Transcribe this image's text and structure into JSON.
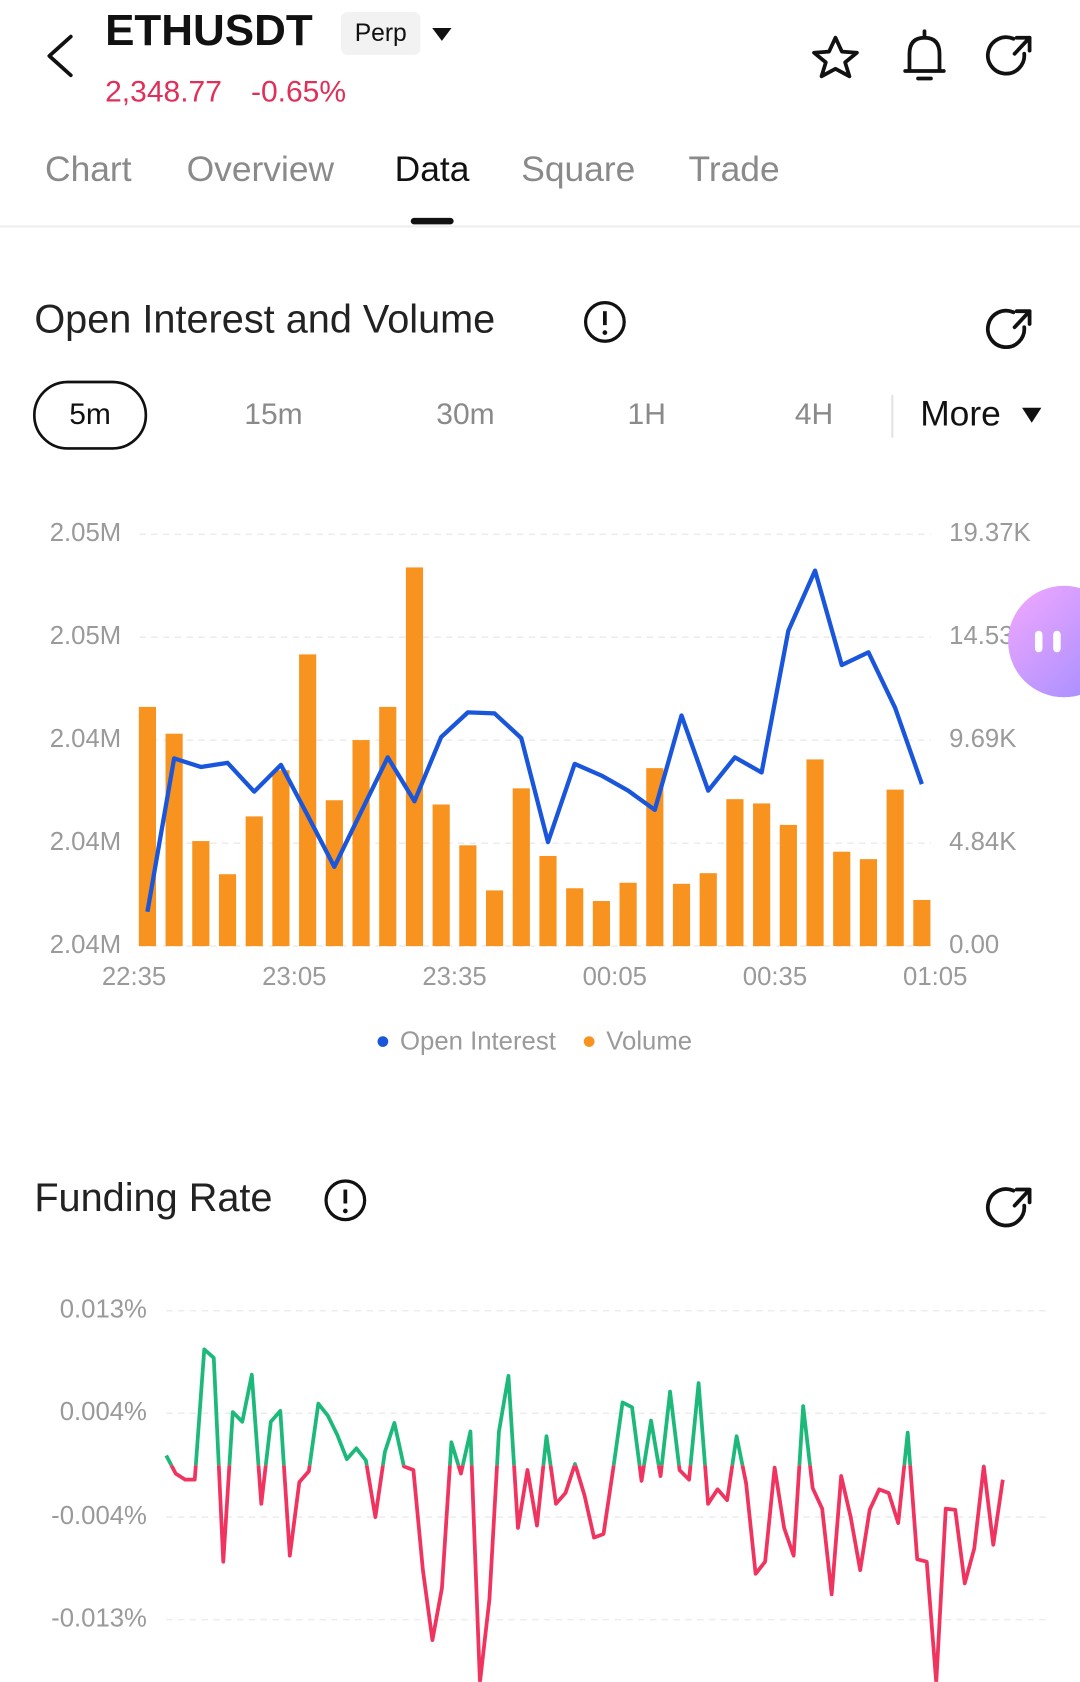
{
  "header": {
    "symbol": "ETHUSDT",
    "badge": "Perp",
    "price": "2,348.77",
    "change": "-0.65%"
  },
  "tabs": {
    "items": [
      "Chart",
      "Overview",
      "Data",
      "Square",
      "Trade"
    ],
    "active": 2
  },
  "sections": [
    {
      "title": "Open Interest and Volume",
      "intervals": [
        "5m",
        "15m",
        "30m",
        "1H",
        "4H"
      ],
      "active_interval": 0,
      "more": "More"
    },
    {
      "title": "Funding Rate"
    }
  ],
  "chart_data": [
    {
      "type": "combo",
      "x_labels": [
        "22:35",
        "23:05",
        "23:35",
        "00:05",
        "00:35",
        "01:05"
      ],
      "ylim": [
        2038000,
        2050000
      ],
      "yticks": [
        {
          "value": 2038000,
          "label": "2.04M"
        },
        {
          "value": 2041000,
          "label": "2.04M"
        },
        {
          "value": 2044000,
          "label": "2.04M"
        },
        {
          "value": 2047000,
          "label": "2.05M"
        },
        {
          "value": 2050000,
          "label": "2.05M"
        }
      ],
      "y2lim": [
        0,
        19370
      ],
      "y2ticks": [
        {
          "value": 0,
          "label": "0.00"
        },
        {
          "value": 4840,
          "label": "4.84K"
        },
        {
          "value": 9690,
          "label": "9.69K"
        },
        {
          "value": 14530,
          "label": "14.53K"
        },
        {
          "value": 19370,
          "label": "19.37K"
        }
      ],
      "grid": true,
      "series": [
        {
          "name": "Open Interest",
          "type": "line",
          "axis": "y",
          "color": "#1a56db",
          "values": [
            2039000,
            2043470,
            2043220,
            2043340,
            2042500,
            2043280,
            2041810,
            2040310,
            2041910,
            2043500,
            2042220,
            2044090,
            2044810,
            2044780,
            2044060,
            2041030,
            2043310,
            2042970,
            2042530,
            2041970,
            2044720,
            2042530,
            2043500,
            2043060,
            2047190,
            2048940,
            2046190,
            2046560,
            2044940,
            2042720
          ]
        },
        {
          "name": "Volume",
          "type": "bar",
          "axis": "y2",
          "color": "#f7931e",
          "values": [
            11250,
            9990,
            4940,
            3380,
            6100,
            8270,
            13720,
            6860,
            9690,
            11250,
            17810,
            6660,
            4740,
            2620,
            7420,
            4240,
            2720,
            2120,
            2980,
            8370,
            2930,
            3430,
            6910,
            6710,
            5700,
            8780,
            4440,
            4090,
            7360,
            2170
          ]
        }
      ]
    },
    {
      "type": "line",
      "ylim": [
        -0.0128,
        0.0128
      ],
      "yticks": [
        {
          "value": 0.0128,
          "label": "0.013%"
        },
        {
          "value": 0.0043,
          "label": "0.004%"
        },
        {
          "value": -0.0043,
          "label": "-0.004%"
        },
        {
          "value": -0.0128,
          "label": "-0.013%"
        }
      ],
      "grid": true,
      "color_positive": "#1db97a",
      "color_negative": "#f0335f",
      "values": [
        0.0008,
        -0.0007,
        -0.0012,
        -0.0012,
        0.0096,
        0.0089,
        -0.008,
        0.0044,
        0.0036,
        0.0075,
        -0.0032,
        0.0036,
        0.0045,
        -0.0075,
        -0.0014,
        -0.0005,
        0.0051,
        0.0041,
        0.0025,
        0.0005,
        0.0014,
        0.0004,
        -0.0043,
        0.0011,
        0.0035,
        -0.0001,
        -0.0004,
        -0.0087,
        -0.0145,
        -0.0102,
        0.0019,
        -0.0007,
        0.0028,
        -0.018,
        -0.0111,
        0.0028,
        0.0074,
        -0.0052,
        -0.0004,
        -0.005,
        0.0024,
        -0.0032,
        -0.0023,
        0.0001,
        -0.0025,
        -0.006,
        -0.0057,
        -0.0004,
        0.0052,
        0.0048,
        -0.0013,
        0.0037,
        -0.0009,
        0.0061,
        -0.0004,
        -0.0012,
        0.0068,
        -0.0032,
        -0.002,
        -0.0029,
        0.0024,
        -0.0015,
        -0.009,
        -0.008,
        -0.0002,
        -0.0052,
        -0.0075,
        0.0049,
        -0.0019,
        -0.0036,
        -0.0107,
        -0.0009,
        -0.0043,
        -0.0087,
        -0.0037,
        -0.002,
        -0.0023,
        -0.0048,
        0.0027,
        -0.0078,
        -0.008,
        -0.018,
        -0.0036,
        -0.0037,
        -0.0098,
        -0.0069,
        -0.0001,
        -0.0066,
        -0.0012
      ]
    }
  ]
}
